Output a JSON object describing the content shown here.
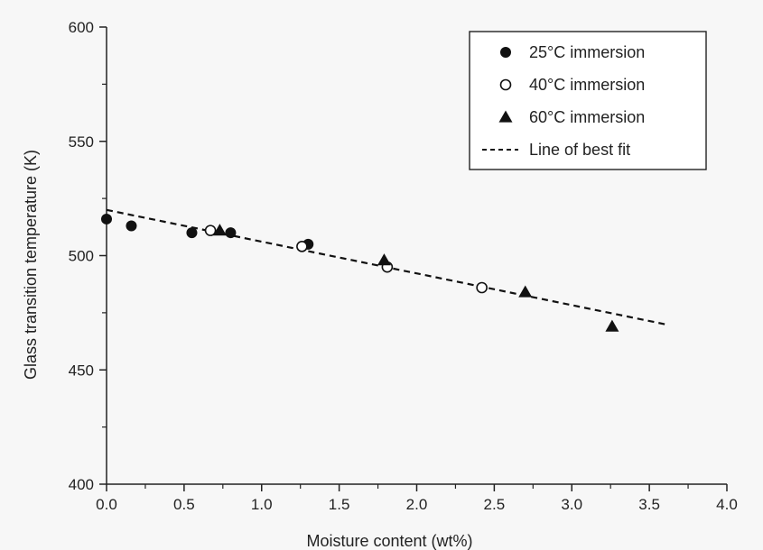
{
  "chart_data": {
    "type": "scatter",
    "title": "",
    "xlabel": "Moisture content (wt%)",
    "ylabel": "Glass transition temperature (K)",
    "xlim": [
      0.0,
      4.0
    ],
    "ylim": [
      400,
      600
    ],
    "x_ticks": [
      "0.0",
      "0.5",
      "1.0",
      "1.5",
      "2.0",
      "2.5",
      "3.0",
      "3.5",
      "4.0"
    ],
    "y_ticks": [
      "400",
      "450",
      "500",
      "550",
      "600"
    ],
    "grid": false,
    "legend_position": "top-right",
    "series": [
      {
        "name": "25°C immersion",
        "marker": "filled-circle",
        "points": [
          [
            0.0,
            516
          ],
          [
            0.16,
            513
          ],
          [
            0.55,
            510
          ],
          [
            0.8,
            510
          ],
          [
            1.3,
            505
          ]
        ]
      },
      {
        "name": "40°C immersion",
        "marker": "open-circle",
        "points": [
          [
            0.67,
            511
          ],
          [
            1.26,
            504
          ],
          [
            1.81,
            495
          ],
          [
            2.42,
            486
          ]
        ]
      },
      {
        "name": "60°C immersion",
        "marker": "filled-triangle",
        "points": [
          [
            0.73,
            511
          ],
          [
            1.79,
            498
          ],
          [
            2.7,
            484
          ],
          [
            3.26,
            469
          ]
        ]
      },
      {
        "name": "Line of best fit",
        "marker": "dashed-line",
        "line": [
          [
            0.0,
            520
          ],
          [
            3.6,
            470
          ]
        ]
      }
    ],
    "colors": {
      "marker": "#111111",
      "axis": "#222222",
      "background": "#f7f7f7"
    }
  }
}
